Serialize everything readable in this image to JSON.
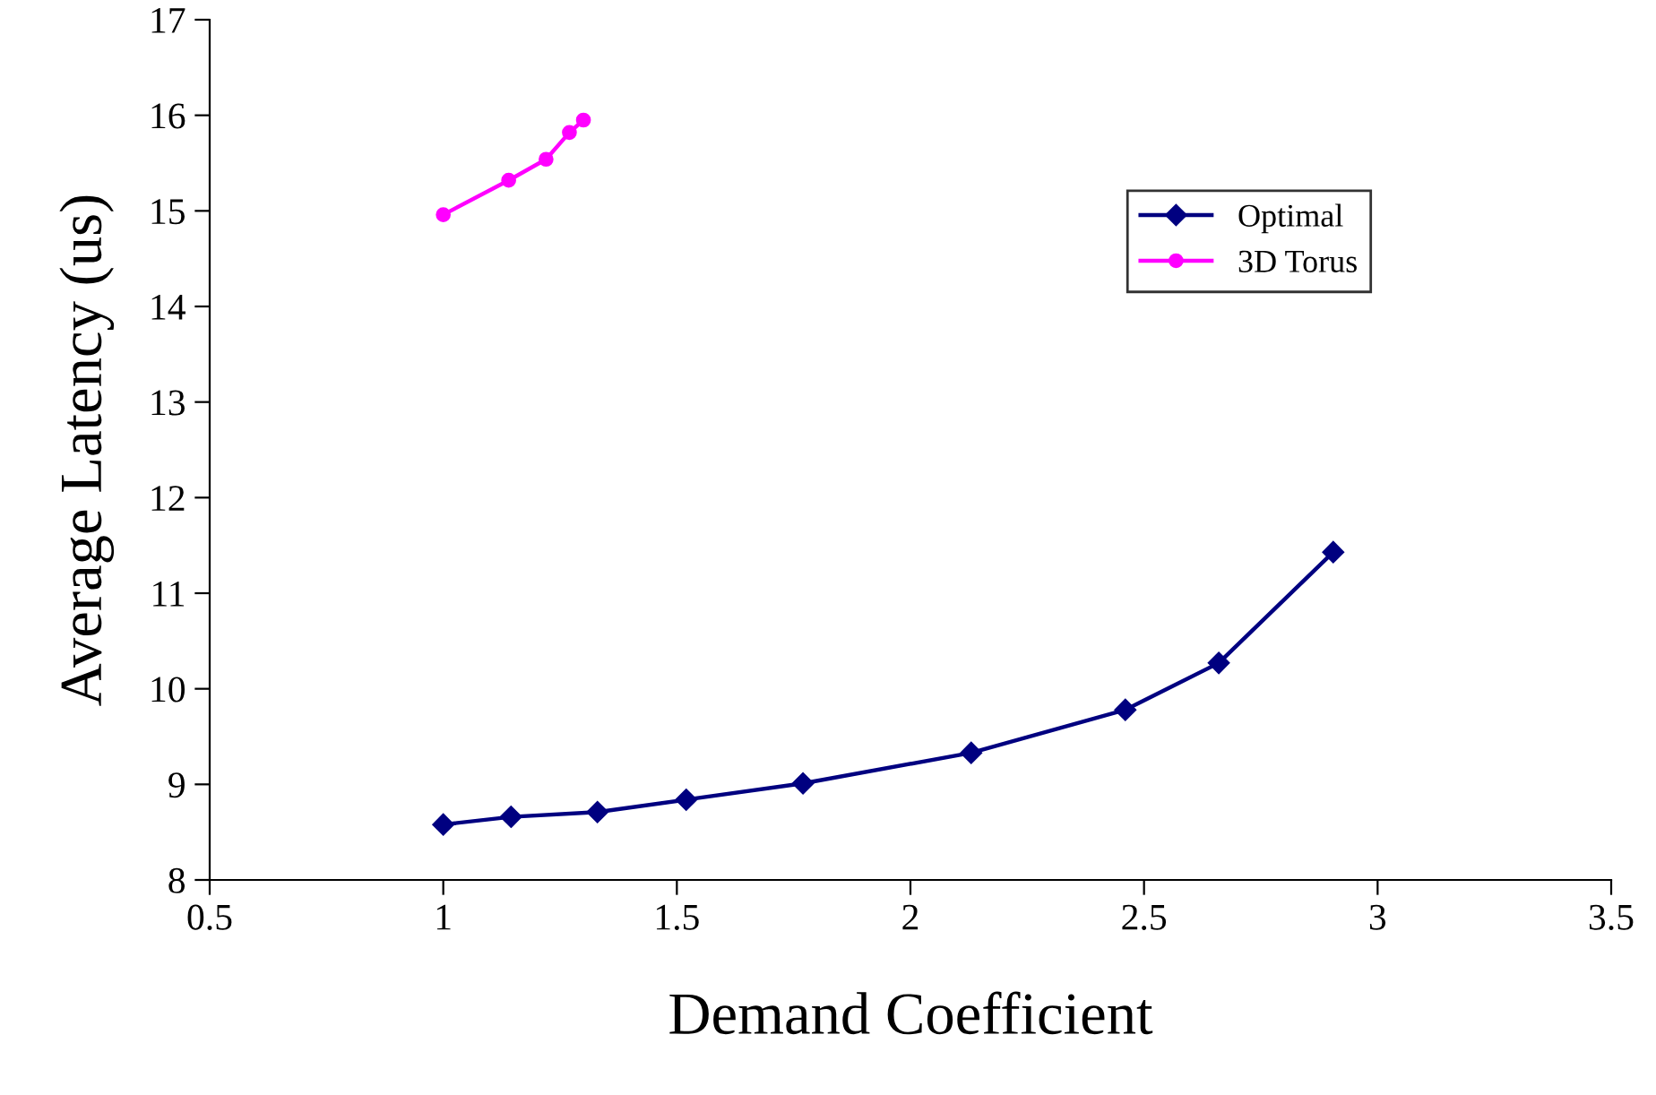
{
  "chart_data": {
    "type": "line",
    "xlabel": "Demand Coefficient",
    "ylabel": "Average Latency (us)",
    "xlim": [
      0.5,
      3.5
    ],
    "xticks": [
      0.5,
      1,
      1.5,
      2,
      2.5,
      3,
      3.5
    ],
    "ylim": [
      8,
      17
    ],
    "yticks": [
      8,
      9,
      10,
      11,
      12,
      13,
      14,
      15,
      16,
      17
    ],
    "grid": false,
    "legend": "top right",
    "series": [
      {
        "name": "Optimal",
        "color": "#000080",
        "marker": "diamond",
        "x": [
          1.0,
          1.145,
          1.33,
          1.52,
          1.77,
          2.13,
          2.46,
          2.66,
          2.905
        ],
        "values": [
          8.58,
          8.66,
          8.71,
          8.84,
          9.01,
          9.33,
          9.78,
          10.27,
          11.43
        ]
      },
      {
        "name": "3D Torus",
        "color": "#ff00ff",
        "marker": "circle",
        "x": [
          1.0,
          1.14,
          1.22,
          1.27,
          1.3
        ],
        "values": [
          14.96,
          15.32,
          15.54,
          15.82,
          15.95
        ]
      }
    ]
  }
}
